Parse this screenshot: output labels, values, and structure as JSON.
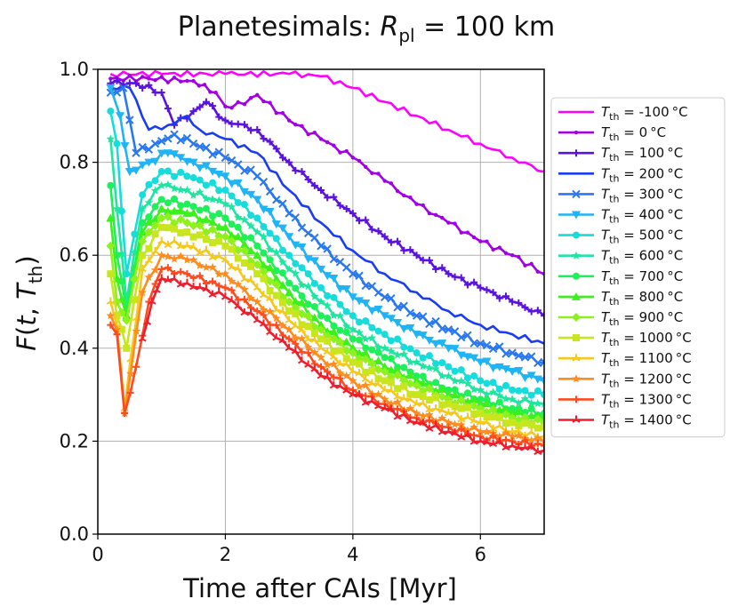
{
  "chart_data": {
    "type": "line",
    "title": {
      "prefix": "Planetesimals: ",
      "symbol": "R",
      "sub": "pl",
      "suffix": " = 100 km"
    },
    "xlabel": "Time after CAIs [Myr]",
    "ylabel": {
      "f": "F",
      "open": "(",
      "t": "t",
      "comma": ", ",
      "T": "T",
      "sub": "th",
      "close": ")"
    },
    "xlim": [
      0,
      7
    ],
    "ylim": [
      0,
      1
    ],
    "xticks": [
      0,
      2,
      4,
      6
    ],
    "yticks": [
      0.0,
      0.2,
      0.4,
      0.6,
      0.8,
      1.0
    ],
    "xtick_labels": [
      "0",
      "2",
      "4",
      "6"
    ],
    "ytick_labels": [
      "0.0",
      "0.2",
      "0.4",
      "0.6",
      "0.8",
      "1.0"
    ],
    "grid": true,
    "legend_position": "outside-right",
    "legend_symbol": "T",
    "legend_sub": "th",
    "series": [
      {
        "name": "-100°C",
        "label": " = -100 °C",
        "color": "#ff00ff",
        "marker": "none",
        "points": [
          [
            0.2,
            0.99
          ],
          [
            1,
            0.99
          ],
          [
            2,
            0.99
          ],
          [
            3,
            0.99
          ],
          [
            3.5,
            0.985
          ],
          [
            4,
            0.96
          ],
          [
            4.5,
            0.93
          ],
          [
            5,
            0.9
          ],
          [
            5.5,
            0.87
          ],
          [
            6,
            0.84
          ],
          [
            6.5,
            0.81
          ],
          [
            7,
            0.78
          ]
        ]
      },
      {
        "name": "0°C",
        "label": " = 0 °C",
        "color": "#a100e6",
        "marker": "dot",
        "points": [
          [
            0.2,
            0.98
          ],
          [
            0.8,
            0.98
          ],
          [
            1.5,
            0.975
          ],
          [
            1.85,
            0.95
          ],
          [
            2.0,
            0.92
          ],
          [
            2.3,
            0.925
          ],
          [
            2.5,
            0.945
          ],
          [
            3,
            0.89
          ],
          [
            3.5,
            0.85
          ],
          [
            4,
            0.81
          ],
          [
            4.5,
            0.76
          ],
          [
            5,
            0.71
          ],
          [
            5.5,
            0.67
          ],
          [
            6,
            0.63
          ],
          [
            6.5,
            0.6
          ],
          [
            7,
            0.56
          ]
        ]
      },
      {
        "name": "100°C",
        "label": " = 100 °C",
        "color": "#5a12e0",
        "marker": "plus",
        "points": [
          [
            0.2,
            0.97
          ],
          [
            0.6,
            0.97
          ],
          [
            1.0,
            0.95
          ],
          [
            1.2,
            0.88
          ],
          [
            1.5,
            0.91
          ],
          [
            1.7,
            0.93
          ],
          [
            2.0,
            0.89
          ],
          [
            2.5,
            0.87
          ],
          [
            3,
            0.8
          ],
          [
            3.5,
            0.74
          ],
          [
            4,
            0.69
          ],
          [
            4.5,
            0.64
          ],
          [
            5,
            0.6
          ],
          [
            5.5,
            0.56
          ],
          [
            6,
            0.53
          ],
          [
            6.5,
            0.5
          ],
          [
            7,
            0.47
          ]
        ]
      },
      {
        "name": "200°C",
        "label": " = 200 °C",
        "color": "#1a3cf5",
        "marker": "none",
        "points": [
          [
            0.2,
            0.96
          ],
          [
            0.5,
            0.96
          ],
          [
            0.8,
            0.87
          ],
          [
            1.1,
            0.88
          ],
          [
            1.4,
            0.9
          ],
          [
            1.6,
            0.87
          ],
          [
            2.0,
            0.85
          ],
          [
            2.5,
            0.82
          ],
          [
            3,
            0.74
          ],
          [
            3.5,
            0.67
          ],
          [
            4,
            0.61
          ],
          [
            4.5,
            0.56
          ],
          [
            5,
            0.52
          ],
          [
            5.5,
            0.48
          ],
          [
            6,
            0.45
          ],
          [
            6.5,
            0.43
          ],
          [
            7,
            0.41
          ]
        ]
      },
      {
        "name": "300°C",
        "label": " = 300 °C",
        "color": "#2a78f0",
        "marker": "x",
        "points": [
          [
            0.2,
            0.95
          ],
          [
            0.4,
            0.96
          ],
          [
            0.6,
            0.82
          ],
          [
            0.9,
            0.84
          ],
          [
            1.2,
            0.86
          ],
          [
            1.5,
            0.84
          ],
          [
            2.0,
            0.81
          ],
          [
            2.5,
            0.77
          ],
          [
            3,
            0.69
          ],
          [
            3.5,
            0.62
          ],
          [
            4,
            0.56
          ],
          [
            4.5,
            0.51
          ],
          [
            5,
            0.47
          ],
          [
            5.5,
            0.44
          ],
          [
            6,
            0.41
          ],
          [
            6.5,
            0.39
          ],
          [
            7,
            0.37
          ]
        ]
      },
      {
        "name": "400°C",
        "label": " = 400 °C",
        "color": "#1eb4f5",
        "marker": "triangle-down",
        "points": [
          [
            0.2,
            0.96
          ],
          [
            0.35,
            0.9
          ],
          [
            0.5,
            0.78
          ],
          [
            0.8,
            0.8
          ],
          [
            1.1,
            0.82
          ],
          [
            1.5,
            0.8
          ],
          [
            2.0,
            0.77
          ],
          [
            2.5,
            0.72
          ],
          [
            3,
            0.64
          ],
          [
            3.5,
            0.57
          ],
          [
            4,
            0.51
          ],
          [
            4.5,
            0.47
          ],
          [
            5,
            0.43
          ],
          [
            5.5,
            0.4
          ],
          [
            6,
            0.37
          ],
          [
            6.5,
            0.35
          ],
          [
            7,
            0.33
          ]
        ]
      },
      {
        "name": "500°C",
        "label": " = 500 °C",
        "color": "#16dcdc",
        "marker": "circle",
        "points": [
          [
            0.2,
            0.91
          ],
          [
            0.3,
            0.84
          ],
          [
            0.45,
            0.56
          ],
          [
            0.7,
            0.73
          ],
          [
            1.0,
            0.78
          ],
          [
            1.4,
            0.77
          ],
          [
            2.0,
            0.74
          ],
          [
            2.5,
            0.68
          ],
          [
            3,
            0.6
          ],
          [
            3.5,
            0.53
          ],
          [
            4,
            0.47
          ],
          [
            4.5,
            0.43
          ],
          [
            5,
            0.39
          ],
          [
            5.5,
            0.36
          ],
          [
            6,
            0.33
          ],
          [
            6.5,
            0.31
          ],
          [
            7,
            0.3
          ]
        ]
      },
      {
        "name": "600°C",
        "label": " = 600 °C",
        "color": "#1ee6a0",
        "marker": "star",
        "points": [
          [
            0.2,
            0.85
          ],
          [
            0.3,
            0.7
          ],
          [
            0.45,
            0.5
          ],
          [
            0.7,
            0.7
          ],
          [
            1.0,
            0.75
          ],
          [
            1.4,
            0.74
          ],
          [
            2.0,
            0.71
          ],
          [
            2.5,
            0.65
          ],
          [
            3,
            0.57
          ],
          [
            3.5,
            0.5
          ],
          [
            4,
            0.44
          ],
          [
            4.5,
            0.4
          ],
          [
            5,
            0.37
          ],
          [
            5.5,
            0.34
          ],
          [
            6,
            0.31
          ],
          [
            6.5,
            0.29
          ],
          [
            7,
            0.28
          ]
        ]
      },
      {
        "name": "700°C",
        "label": " = 700 °C",
        "color": "#1ef05a",
        "marker": "circle",
        "points": [
          [
            0.2,
            0.75
          ],
          [
            0.3,
            0.6
          ],
          [
            0.45,
            0.48
          ],
          [
            0.7,
            0.67
          ],
          [
            1.0,
            0.72
          ],
          [
            1.4,
            0.71
          ],
          [
            2.0,
            0.68
          ],
          [
            2.5,
            0.62
          ],
          [
            3,
            0.54
          ],
          [
            3.5,
            0.47
          ],
          [
            4,
            0.42
          ],
          [
            4.5,
            0.38
          ],
          [
            5,
            0.34
          ],
          [
            5.5,
            0.31
          ],
          [
            6,
            0.29
          ],
          [
            6.5,
            0.27
          ],
          [
            7,
            0.26
          ]
        ]
      },
      {
        "name": "800°C",
        "label": " = 800 °C",
        "color": "#3cf01e",
        "marker": "triangle-up",
        "points": [
          [
            0.2,
            0.68
          ],
          [
            0.3,
            0.55
          ],
          [
            0.45,
            0.47
          ],
          [
            0.7,
            0.65
          ],
          [
            1.0,
            0.7
          ],
          [
            1.4,
            0.69
          ],
          [
            2.0,
            0.66
          ],
          [
            2.5,
            0.6
          ],
          [
            3,
            0.52
          ],
          [
            3.5,
            0.45
          ],
          [
            4,
            0.4
          ],
          [
            4.5,
            0.36
          ],
          [
            5,
            0.33
          ],
          [
            5.5,
            0.3
          ],
          [
            6,
            0.28
          ],
          [
            6.5,
            0.26
          ],
          [
            7,
            0.25
          ]
        ]
      },
      {
        "name": "900°C",
        "label": " = 900 °C",
        "color": "#8ef01e",
        "marker": "diamond",
        "points": [
          [
            0.2,
            0.62
          ],
          [
            0.3,
            0.5
          ],
          [
            0.45,
            0.46
          ],
          [
            0.7,
            0.63
          ],
          [
            1.0,
            0.68
          ],
          [
            1.4,
            0.67
          ],
          [
            2.0,
            0.64
          ],
          [
            2.5,
            0.58
          ],
          [
            3,
            0.5
          ],
          [
            3.5,
            0.44
          ],
          [
            4,
            0.39
          ],
          [
            4.5,
            0.35
          ],
          [
            5,
            0.32
          ],
          [
            5.5,
            0.29
          ],
          [
            6,
            0.27
          ],
          [
            6.5,
            0.25
          ],
          [
            7,
            0.24
          ]
        ]
      },
      {
        "name": "1000°C",
        "label": " = 1000 °C",
        "color": "#c8e61e",
        "marker": "square",
        "points": [
          [
            0.2,
            0.56
          ],
          [
            0.3,
            0.47
          ],
          [
            0.45,
            0.4
          ],
          [
            0.7,
            0.6
          ],
          [
            1.0,
            0.66
          ],
          [
            1.4,
            0.65
          ],
          [
            2.0,
            0.62
          ],
          [
            2.5,
            0.56
          ],
          [
            3,
            0.48
          ],
          [
            3.5,
            0.42
          ],
          [
            4,
            0.37
          ],
          [
            4.5,
            0.33
          ],
          [
            5,
            0.3
          ],
          [
            5.5,
            0.28
          ],
          [
            6,
            0.26
          ],
          [
            6.5,
            0.24
          ],
          [
            7,
            0.23
          ]
        ]
      },
      {
        "name": "1100°C",
        "label": " = 1100 °C",
        "color": "#f5c81e",
        "marker": "tri",
        "points": [
          [
            0.2,
            0.5
          ],
          [
            0.3,
            0.45
          ],
          [
            0.42,
            0.27
          ],
          [
            0.7,
            0.57
          ],
          [
            1.0,
            0.63
          ],
          [
            1.4,
            0.62
          ],
          [
            2.0,
            0.59
          ],
          [
            2.5,
            0.53
          ],
          [
            3,
            0.46
          ],
          [
            3.5,
            0.4
          ],
          [
            4,
            0.35
          ],
          [
            4.5,
            0.31
          ],
          [
            5,
            0.28
          ],
          [
            5.5,
            0.26
          ],
          [
            6,
            0.24
          ],
          [
            6.5,
            0.22
          ],
          [
            7,
            0.21
          ]
        ]
      },
      {
        "name": "1200°C",
        "label": " = 1200 °C",
        "color": "#ff8c1e",
        "marker": "star",
        "points": [
          [
            0.2,
            0.47
          ],
          [
            0.3,
            0.44
          ],
          [
            0.42,
            0.26
          ],
          [
            0.7,
            0.52
          ],
          [
            1.0,
            0.6
          ],
          [
            1.4,
            0.59
          ],
          [
            2.0,
            0.56
          ],
          [
            2.5,
            0.5
          ],
          [
            3,
            0.44
          ],
          [
            3.5,
            0.38
          ],
          [
            4,
            0.33
          ],
          [
            4.5,
            0.29
          ],
          [
            5,
            0.26
          ],
          [
            5.5,
            0.24
          ],
          [
            6,
            0.22
          ],
          [
            6.5,
            0.21
          ],
          [
            7,
            0.2
          ]
        ]
      },
      {
        "name": "1300°C",
        "label": " = 1300 °C",
        "color": "#ff4a1e",
        "marker": "plus",
        "points": [
          [
            0.2,
            0.45
          ],
          [
            0.3,
            0.43
          ],
          [
            0.42,
            0.26
          ],
          [
            0.6,
            0.36
          ],
          [
            0.8,
            0.5
          ],
          [
            1.0,
            0.57
          ],
          [
            1.4,
            0.56
          ],
          [
            2.0,
            0.53
          ],
          [
            2.5,
            0.48
          ],
          [
            3,
            0.42
          ],
          [
            3.5,
            0.36
          ],
          [
            4,
            0.31
          ],
          [
            4.5,
            0.28
          ],
          [
            5,
            0.25
          ],
          [
            5.5,
            0.23
          ],
          [
            6,
            0.21
          ],
          [
            6.5,
            0.2
          ],
          [
            7,
            0.19
          ]
        ]
      },
      {
        "name": "1400°C",
        "label": " = 1400 °C",
        "color": "#f01e2d",
        "marker": "tri",
        "points": [
          [
            0.7,
            0.42
          ],
          [
            0.85,
            0.5
          ],
          [
            1.0,
            0.55
          ],
          [
            1.4,
            0.54
          ],
          [
            2.0,
            0.51
          ],
          [
            2.5,
            0.46
          ],
          [
            3,
            0.4
          ],
          [
            3.5,
            0.34
          ],
          [
            4,
            0.3
          ],
          [
            4.5,
            0.27
          ],
          [
            5,
            0.24
          ],
          [
            5.5,
            0.22
          ],
          [
            6,
            0.2
          ],
          [
            6.5,
            0.19
          ],
          [
            7,
            0.18
          ]
        ]
      }
    ]
  }
}
